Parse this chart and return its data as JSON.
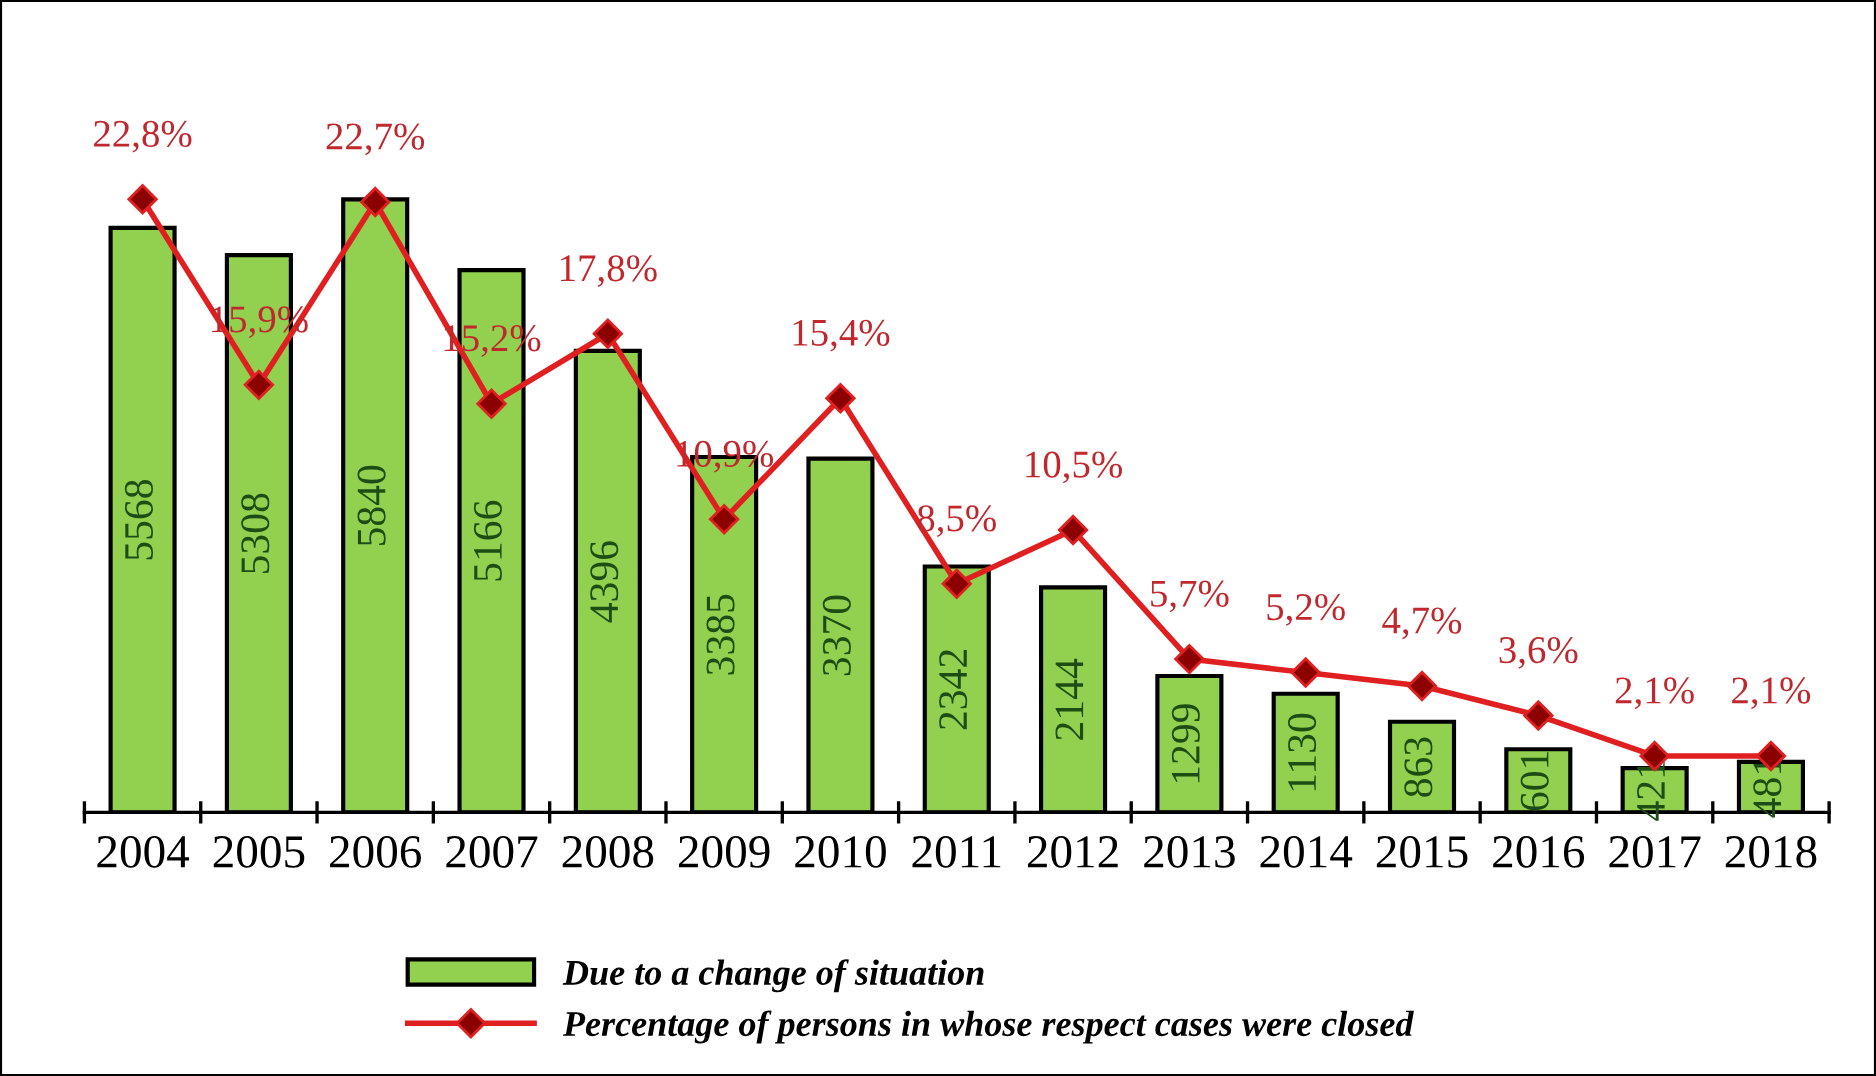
{
  "chart_data": {
    "type": "bar",
    "categories": [
      "2004",
      "2005",
      "2006",
      "2007",
      "2008",
      "2009",
      "2010",
      "2011",
      "2012",
      "2013",
      "2014",
      "2015",
      "2016",
      "2017",
      "2018"
    ],
    "series": [
      {
        "name": "Due to a change of situation",
        "color": "#92d050",
        "values": [
          5568,
          5308,
          5840,
          5166,
          4396,
          3385,
          3370,
          2342,
          2144,
          1299,
          1130,
          863,
          601,
          421,
          481
        ],
        "value_labels": [
          "5568",
          "5308",
          "5840",
          "5166",
          "4396",
          "3385",
          "3370",
          "2342",
          "2144",
          "1299",
          "1130",
          "863",
          "601",
          "421",
          "481"
        ]
      },
      {
        "name": "Percentage of persons in whose respect cases were closed",
        "type": "line",
        "axis": "y2",
        "color": "#e02020",
        "marker": "diamond",
        "values": [
          22.8,
          15.9,
          22.7,
          15.2,
          17.8,
          10.9,
          15.4,
          8.5,
          10.5,
          5.7,
          5.2,
          4.7,
          3.6,
          2.1,
          2.1
        ],
        "value_labels": [
          "22,8%",
          "15,9%",
          "22,7%",
          "15,2%",
          "17,8%",
          "10,9%",
          "15,4%",
          "8,5%",
          "10,5%",
          "5,7%",
          "5,2%",
          "4,7%",
          "3,6%",
          "2,1%",
          "2,1%"
        ]
      }
    ],
    "tick_labels": "x",
    "grid": false,
    "legend": "bottom"
  }
}
